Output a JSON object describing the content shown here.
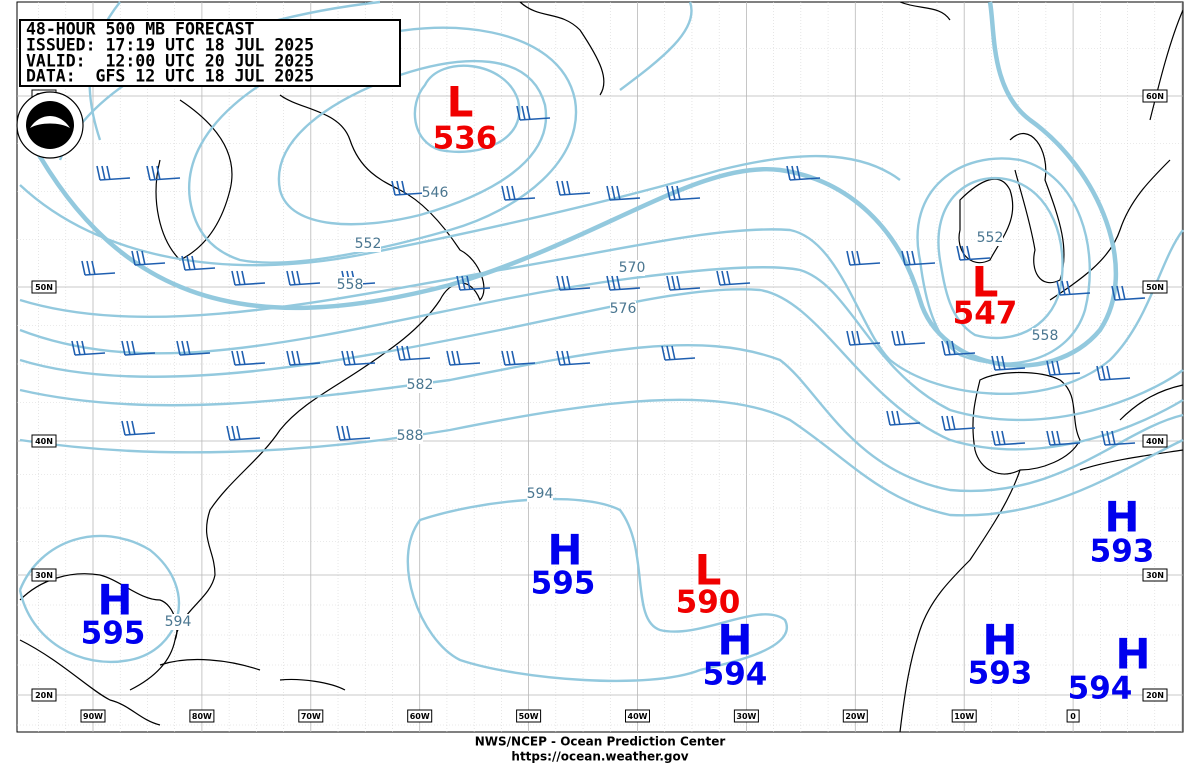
{
  "header": {
    "lines": [
      "48-HOUR 500 MB FORECAST",
      "ISSUED: 17:19 UTC 18 JUL 2025",
      "VALID:  12:00 UTC 20 JUL 2025",
      "DATA:  GFS 12 UTC 18 JUL 2025"
    ]
  },
  "centers": [
    {
      "symbol": "L",
      "value": 536
    },
    {
      "symbol": "L",
      "value": 547
    },
    {
      "symbol": "L",
      "value": 590
    },
    {
      "symbol": "H",
      "value": 595
    },
    {
      "symbol": "H",
      "value": 595
    },
    {
      "symbol": "H",
      "value": 594
    },
    {
      "symbol": "H",
      "value": 593
    },
    {
      "symbol": "H",
      "value": 593
    },
    {
      "symbol": "H",
      "value": 594
    }
  ],
  "contour_labels": [
    546,
    552,
    558,
    570,
    576,
    582,
    588,
    594,
    594,
    552,
    558
  ],
  "latitude_labels": [
    "60N",
    "50N",
    "40N",
    "30N",
    "20N"
  ],
  "longitude_labels": [
    "90W",
    "80W",
    "70W",
    "60W",
    "50W",
    "40W",
    "30W",
    "20W",
    "10W",
    "0"
  ],
  "footer": {
    "agency": "NWS/NCEP - Ocean Prediction Center",
    "url": "https://ocean.weather.gov"
  }
}
